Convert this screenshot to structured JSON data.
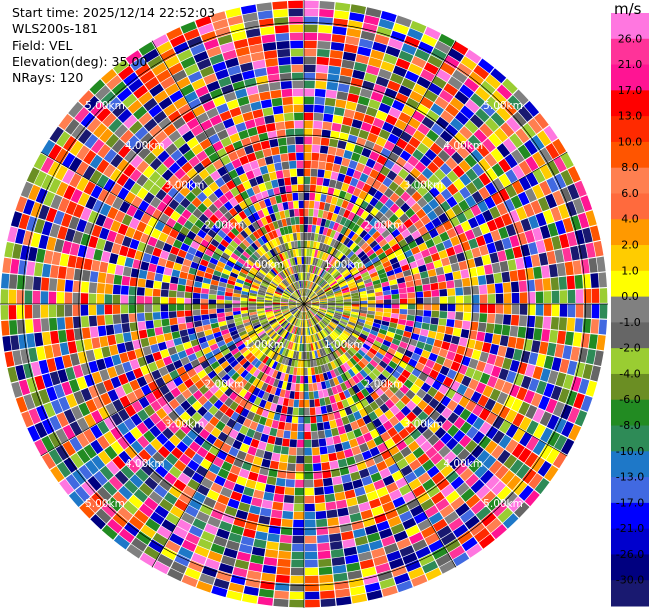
{
  "header": {
    "start_time": "Start time: 2025/12/14 22:52:03",
    "instrument": "WLS200s-181",
    "field": "Field: VEL",
    "elevation": "Elevation(deg): 35.00",
    "nrays": "NRays: 120"
  },
  "colorbar": {
    "unit": "m/s",
    "ticks": [
      "26.0",
      "21.0",
      "17.0",
      "13.0",
      "10.0",
      "8.0",
      "6.0",
      "4.0",
      "2.0",
      "1.0",
      "0.0",
      "-1.0",
      "-2.0",
      "-4.0",
      "-6.0",
      "-8.0",
      "-10.0",
      "-13.0",
      "-17.0",
      "-21.0",
      "-26.0",
      "-30.0"
    ],
    "colors": [
      "#ff77e0",
      "#ff3399",
      "#ff1493",
      "#ff0000",
      "#ff2a00",
      "#ff5500",
      "#ff7f50",
      "#ff6a3d",
      "#ff9900",
      "#ffcc00",
      "#ffff00",
      "#808080",
      "#666666",
      "#9acd32",
      "#6b8e23",
      "#228b22",
      "#2e8b57",
      "#1e78c8",
      "#4169e1",
      "#0000ff",
      "#0000cd",
      "#000080",
      "#191970"
    ]
  },
  "chart_data": {
    "type": "heatmap",
    "projection": "PPI (polar)",
    "field": "VEL",
    "units": "m/s",
    "nrays": 120,
    "range_rings_km": [
      1,
      2,
      3,
      4,
      5
    ],
    "ring_labels": [
      "1.00km",
      "2.00km",
      "3.00km",
      "4.00km",
      "5.00km"
    ],
    "color_scale_range": [
      -30,
      26
    ]
  }
}
